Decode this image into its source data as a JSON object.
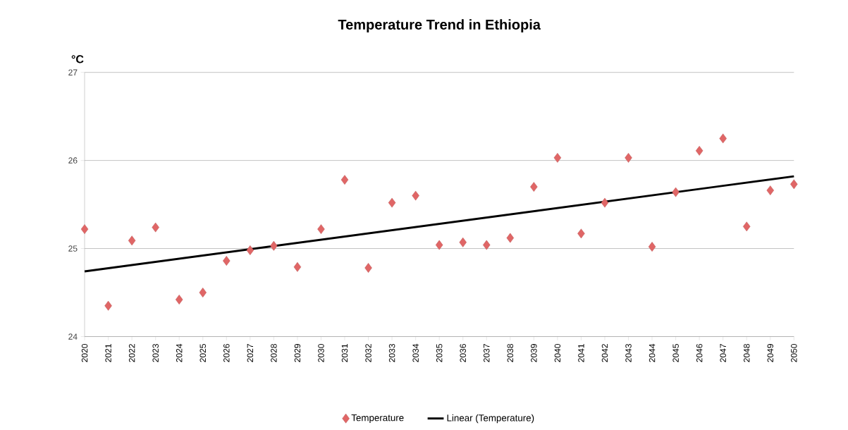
{
  "chart_data": {
    "type": "scatter",
    "title": "Temperature Trend in Ethiopia",
    "ylabel": "°C",
    "xlim": [
      2020,
      2050
    ],
    "xticks": [
      2020,
      2021,
      2022,
      2023,
      2024,
      2025,
      2026,
      2027,
      2028,
      2029,
      2030,
      2031,
      2032,
      2033,
      2034,
      2035,
      2036,
      2037,
      2038,
      2039,
      2040,
      2041,
      2042,
      2043,
      2044,
      2045,
      2046,
      2047,
      2048,
      2049,
      2050
    ],
    "ylim": [
      24,
      27
    ],
    "yticks": [
      24,
      25,
      26,
      27
    ],
    "grid": "y",
    "legend": "bottom",
    "marker": "diamond",
    "x": [
      2020,
      2021,
      2022,
      2023,
      2024,
      2025,
      2026,
      2027,
      2028,
      2029,
      2030,
      2031,
      2032,
      2033,
      2034,
      2035,
      2036,
      2037,
      2038,
      2039,
      2040,
      2041,
      2042,
      2043,
      2044,
      2045,
      2046,
      2047,
      2048,
      2049,
      2050
    ],
    "series": [
      {
        "name": "Temperature",
        "color": "#e06666",
        "values": [
          25.22,
          24.35,
          25.09,
          25.24,
          24.42,
          24.5,
          24.86,
          24.98,
          25.03,
          24.79,
          25.22,
          25.78,
          24.78,
          25.52,
          25.6,
          25.04,
          25.07,
          25.04,
          25.12,
          25.7,
          26.03,
          25.17,
          25.52,
          26.03,
          25.02,
          25.64,
          26.11,
          26.25,
          25.25,
          25.66,
          25.73
        ]
      },
      {
        "name": "Linear (Temperature)",
        "type": "line",
        "color": "#000000",
        "marker": "none",
        "line_style": "solid",
        "x": [
          2020,
          2050
        ],
        "values": [
          24.74,
          25.82
        ]
      }
    ]
  }
}
